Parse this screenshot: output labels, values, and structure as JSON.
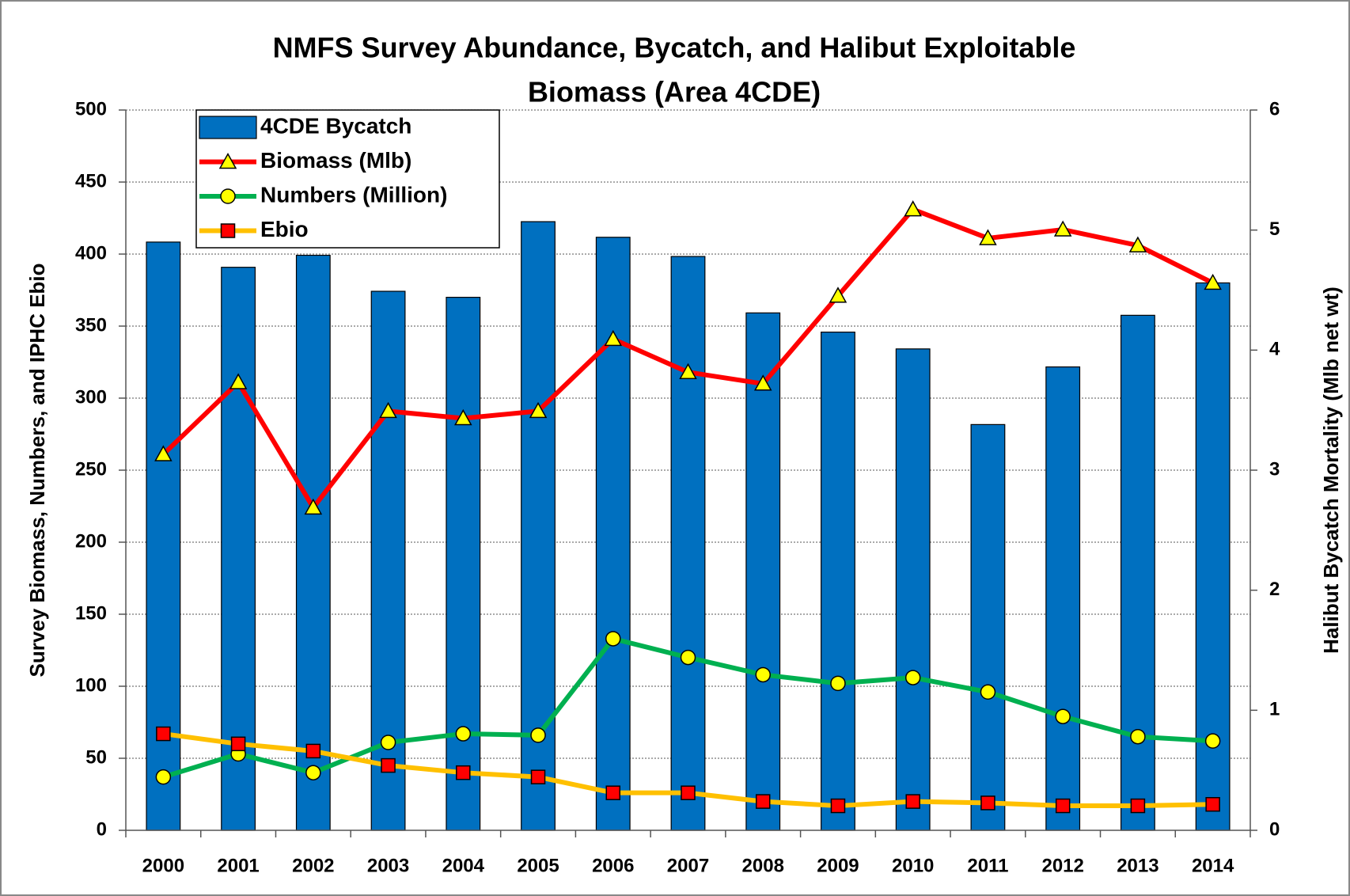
{
  "chart_data": {
    "type": "bar-line",
    "title": [
      "NMFS Survey Abundance, Bycatch, and Halibut Exploitable",
      "Biomass (Area 4CDE)"
    ],
    "ylabel": "Survey Biomass, Numbers, and IPHC Ebio",
    "y2label": "Halibut Bycatch Mortality (Mlb net wt)",
    "categories": [
      "2000",
      "2001",
      "2002",
      "2003",
      "2004",
      "2005",
      "2006",
      "2007",
      "2008",
      "2009",
      "2010",
      "2011",
      "2012",
      "2013",
      "2014"
    ],
    "series": [
      {
        "name": "4CDE Bycatch",
        "type": "bar",
        "axis": "y2",
        "color": "#0070c0",
        "values": [
          4.9,
          4.69,
          4.79,
          4.49,
          4.44,
          5.07,
          4.94,
          4.78,
          4.31,
          4.15,
          4.01,
          3.38,
          3.86,
          4.29,
          4.56
        ]
      },
      {
        "name": "Biomass (Mlb)",
        "type": "line",
        "color": "#ff0000",
        "marker": "triangle",
        "marker_color": "#ffff00",
        "values": [
          261,
          311,
          224,
          291,
          286,
          291,
          341,
          318,
          310,
          371,
          431,
          411,
          417,
          406,
          380
        ]
      },
      {
        "name": "Numbers (Million)",
        "type": "line",
        "color": "#00b050",
        "marker": "circle",
        "marker_color": "#ffff00",
        "values": [
          37,
          53,
          40,
          61,
          67,
          66,
          133,
          120,
          108,
          102,
          106,
          96,
          79,
          65,
          62
        ]
      },
      {
        "name": "Ebio",
        "type": "line",
        "color": "#ffc000",
        "marker": "square",
        "marker_color": "#ff0000",
        "values": [
          67,
          60,
          55,
          45,
          40,
          37,
          26,
          26,
          20,
          17,
          20,
          19,
          17,
          17,
          18
        ]
      }
    ],
    "ylim": [
      0,
      500
    ],
    "yticks": [
      0,
      50,
      100,
      150,
      200,
      250,
      300,
      350,
      400,
      450,
      500
    ],
    "y2lim": [
      0,
      6
    ],
    "y2ticks": [
      0,
      1,
      2,
      3,
      4,
      5,
      6
    ],
    "grid": true,
    "legend": "upper left"
  }
}
